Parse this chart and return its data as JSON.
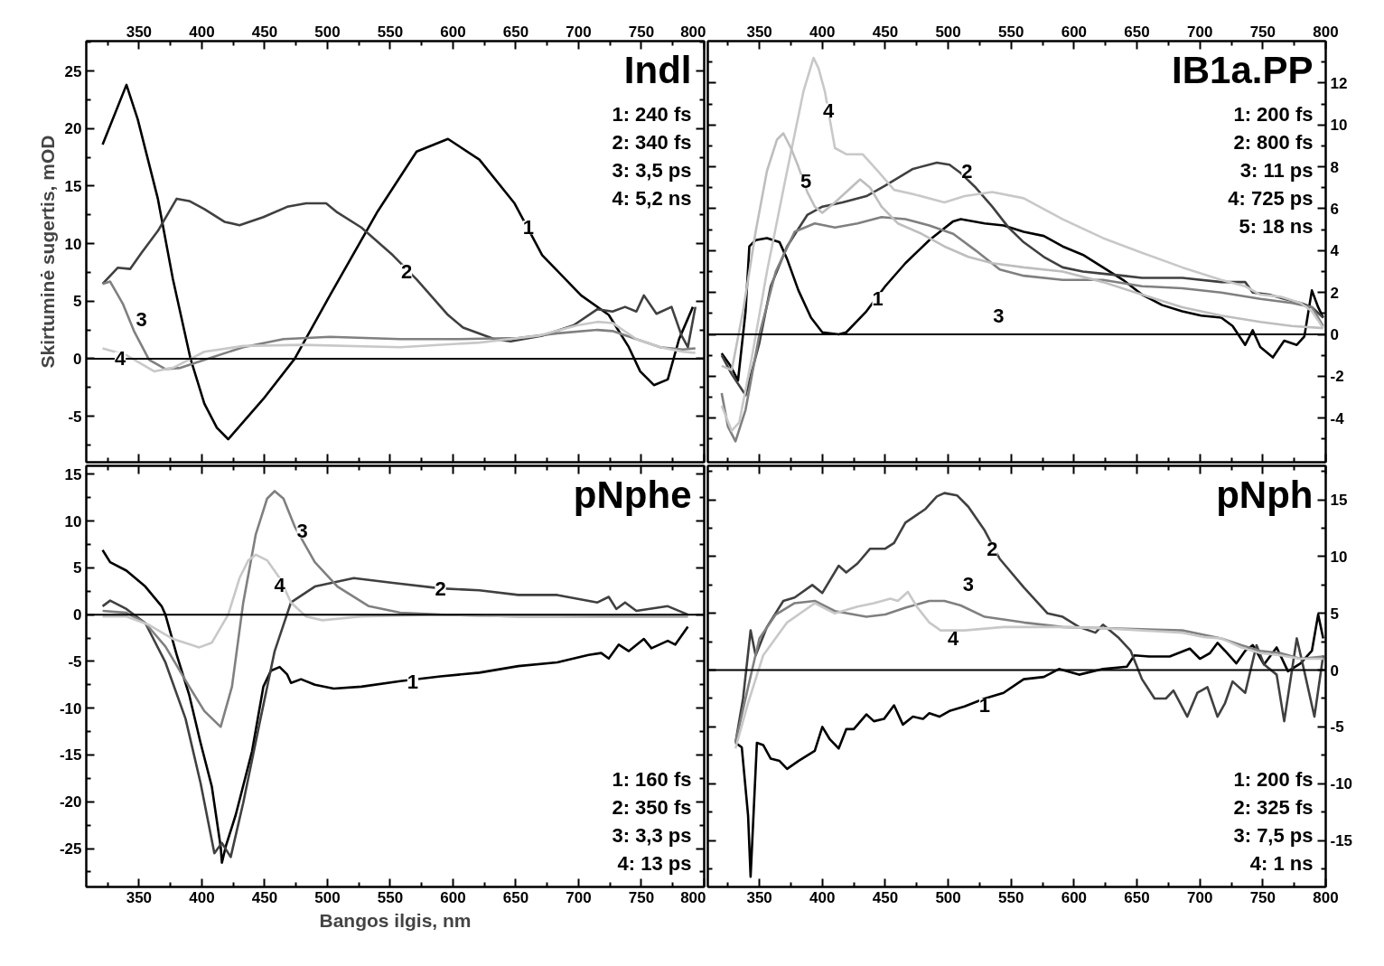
{
  "chart_data": [
    {
      "type": "line",
      "title": "Indl",
      "ylabel": "Skirtuminė sugertis, mOD",
      "xlim": [
        308,
        800
      ],
      "xticks": [
        350,
        400,
        450,
        500,
        550,
        600,
        650,
        700,
        750,
        800
      ],
      "ylim": [
        -9,
        27.6
      ],
      "yticks": [
        -5,
        0,
        5,
        10,
        15,
        20,
        25
      ],
      "grid": false,
      "annotations": [
        "1: 240 fs",
        "2: 340 fs",
        "3: 3,5 ps",
        "4: 5,2 ns",
        {
          "text": "1",
          "x": 660,
          "y": 11.4
        },
        {
          "text": "2",
          "x": 563,
          "y": 7.6
        },
        {
          "text": "3",
          "x": 352,
          "y": 3.4
        },
        {
          "text": "4",
          "x": 335,
          "y": 0
        }
      ],
      "ref_lines": [
        {
          "axis": "y",
          "value": 0,
          "color": "#000000"
        }
      ],
      "series": [
        {
          "color": "#000000",
          "x": [
            321,
            340,
            349,
            365,
            377,
            391,
            402,
            412,
            421,
            449,
            474,
            502,
            540,
            571,
            596,
            621,
            649,
            671,
            702,
            724,
            740,
            749,
            760,
            771,
            780,
            791
          ],
          "values": [
            18.6,
            23.8,
            20.8,
            13.9,
            6.9,
            0,
            -3.9,
            -6.0,
            -7.0,
            -3.5,
            0,
            5.5,
            12.8,
            18.0,
            19.1,
            17.3,
            13.5,
            9.0,
            5.5,
            3.8,
            1.0,
            -1.1,
            -2.3,
            -1.8,
            1.7,
            4.5
          ]
        },
        {
          "color": "#404040",
          "x": [
            321,
            333,
            343,
            352,
            365,
            380,
            390,
            402,
            418,
            430,
            449,
            468,
            483,
            499,
            508,
            527,
            552,
            571,
            596,
            608,
            633,
            646,
            671,
            696,
            715,
            727,
            737,
            746,
            752,
            762,
            774,
            782,
            787,
            793
          ],
          "values": [
            6.5,
            7.9,
            7.8,
            9.2,
            11.1,
            13.9,
            13.7,
            13.0,
            11.9,
            11.6,
            12.3,
            13.2,
            13.5,
            13.5,
            12.7,
            11.4,
            9.0,
            6.9,
            3.8,
            2.7,
            1.7,
            1.5,
            2.0,
            2.9,
            4.3,
            4.1,
            4.5,
            4.1,
            5.5,
            3.9,
            4.5,
            2.0,
            1.0,
            4.5
          ]
        },
        {
          "color": "#808080",
          "x": [
            321,
            327,
            337,
            346,
            358,
            371,
            383,
            402,
            433,
            465,
            502,
            558,
            605,
            652,
            683,
            715,
            727,
            746,
            765,
            783,
            793
          ],
          "values": [
            6.5,
            6.7,
            4.8,
            2.4,
            -0.1,
            -0.9,
            -0.8,
            -0.1,
            1.0,
            1.7,
            1.9,
            1.7,
            1.7,
            1.8,
            2.2,
            2.5,
            2.4,
            1.7,
            1.0,
            0.8,
            0.9
          ]
        },
        {
          "color": "#c8c8c8",
          "x": [
            321,
            340,
            362,
            377,
            402,
            433,
            480,
            558,
            621,
            668,
            699,
            715,
            727,
            746,
            765,
            783,
            793
          ],
          "values": [
            0.9,
            0.3,
            -1.1,
            -0.8,
            0.6,
            1.1,
            1.2,
            1.0,
            1.4,
            2.0,
            2.9,
            3.2,
            3.1,
            1.7,
            1.0,
            0.6,
            0.5
          ]
        }
      ]
    },
    {
      "type": "line",
      "title": "IB1a.PP",
      "xlim": [
        309,
        800
      ],
      "xticks": [
        350,
        400,
        450,
        500,
        550,
        600,
        650,
        700,
        750,
        800
      ],
      "ylim": [
        -6.1,
        14
      ],
      "yticks": [
        -4,
        -2,
        0,
        2,
        4,
        6,
        8,
        10,
        12
      ],
      "grid": false,
      "annotations": [
        "1: 200 fs",
        "2: 800 fs",
        "3: 11 ps",
        "4: 725 ps",
        "5: 18 ns",
        {
          "text": "4",
          "x": 405,
          "y": 10.7
        },
        {
          "text": "2",
          "x": 515,
          "y": 7.8
        },
        {
          "text": "5",
          "x": 387,
          "y": 7.3
        },
        {
          "text": "1",
          "x": 444,
          "y": 1.7
        },
        {
          "text": "3",
          "x": 540,
          "y": 0.9
        }
      ],
      "ref_lines": [
        {
          "axis": "y",
          "value": 0,
          "color": "#000000"
        }
      ],
      "series": [
        {
          "color": "#000000",
          "x": [
            320,
            327,
            333,
            339,
            342,
            347,
            356,
            366,
            372,
            381,
            391,
            400,
            413,
            419,
            435,
            450,
            466,
            485,
            504,
            510,
            529,
            544,
            560,
            576,
            591,
            607,
            623,
            639,
            654,
            670,
            686,
            701,
            717,
            726,
            736,
            742,
            748,
            758,
            767,
            777,
            783,
            789,
            794,
            798
          ],
          "values": [
            -0.9,
            -1.5,
            -2.2,
            1.1,
            4.2,
            4.5,
            4.6,
            4.4,
            3.6,
            2.1,
            0.8,
            0.1,
            0,
            0.1,
            1.1,
            2.3,
            3.4,
            4.5,
            5.4,
            5.5,
            5.3,
            5.2,
            4.9,
            4.7,
            4.2,
            3.8,
            3.2,
            2.6,
            1.9,
            1.4,
            1.1,
            0.9,
            0.8,
            0.4,
            -0.5,
            0.2,
            -0.6,
            -1.1,
            -0.3,
            -0.5,
            -0.1,
            2.1,
            1.3,
            0.8
          ]
        },
        {
          "color": "#404040",
          "x": [
            320,
            328,
            339,
            350,
            359,
            372,
            388,
            400,
            416,
            435,
            450,
            472,
            491,
            501,
            510,
            522,
            535,
            548,
            560,
            576,
            591,
            607,
            623,
            639,
            654,
            686,
            717,
            736,
            742,
            755,
            767,
            780,
            789,
            798
          ],
          "values": [
            -1.0,
            -1.9,
            -2.9,
            -0.4,
            2.3,
            4.2,
            5.7,
            6.1,
            6.3,
            6.6,
            7.1,
            7.9,
            8.2,
            8.1,
            7.7,
            7.0,
            6.1,
            5.1,
            4.4,
            3.7,
            3.2,
            3.0,
            2.9,
            2.8,
            2.7,
            2.7,
            2.5,
            2.5,
            2.0,
            1.9,
            1.7,
            1.5,
            1.3,
            0.8
          ]
        },
        {
          "color": "#808080",
          "x": [
            320,
            325,
            331,
            339,
            350,
            363,
            378,
            394,
            410,
            428,
            447,
            466,
            485,
            504,
            522,
            541,
            560,
            591,
            623,
            654,
            686,
            717,
            748,
            773,
            789,
            798
          ],
          "values": [
            -2.8,
            -4.4,
            -5.1,
            -3.6,
            0,
            3.0,
            4.9,
            5.3,
            5.1,
            5.3,
            5.6,
            5.5,
            5.2,
            4.8,
            4.0,
            3.1,
            2.8,
            2.6,
            2.6,
            2.3,
            2.2,
            2.0,
            1.7,
            1.5,
            1.3,
            0.4
          ]
        },
        {
          "color": "#c8c8c8",
          "x": [
            320,
            328,
            334,
            344,
            356,
            372,
            385,
            393,
            397,
            402,
            410,
            419,
            432,
            444,
            457,
            472,
            497,
            513,
            535,
            560,
            591,
            623,
            654,
            686,
            717,
            736,
            748,
            764,
            780,
            789,
            798
          ],
          "values": [
            -3.4,
            -4.6,
            -4.2,
            -1.1,
            3.0,
            7.8,
            11.6,
            13.2,
            12.7,
            11.6,
            8.9,
            8.6,
            8.6,
            7.8,
            6.9,
            6.7,
            6.3,
            6.6,
            6.8,
            6.5,
            5.5,
            4.6,
            3.9,
            3.2,
            2.6,
            2.3,
            1.9,
            1.8,
            1.5,
            1.1,
            0.3
          ]
        },
        {
          "color": "#bebebe",
          "x": [
            320,
            328,
            337,
            347,
            356,
            364,
            369,
            375,
            381,
            388,
            394,
            400,
            410,
            419,
            430,
            438,
            447,
            460,
            479,
            497,
            516,
            535,
            560,
            591,
            623,
            654,
            686,
            717,
            748,
            773,
            798
          ],
          "values": [
            -1.5,
            -1.7,
            1.1,
            4.9,
            7.8,
            9.3,
            9.6,
            8.9,
            8.0,
            6.8,
            6.1,
            5.8,
            6.3,
            6.8,
            7.4,
            7.0,
            6.1,
            5.3,
            4.8,
            4.2,
            3.7,
            3.4,
            3.2,
            3.0,
            2.5,
            1.9,
            1.3,
            0.9,
            0.6,
            0.4,
            0.3
          ]
        }
      ]
    },
    {
      "type": "line",
      "title": "pNphe",
      "xlabel": "Bangos ilgis, nm",
      "xlim": [
        308,
        800
      ],
      "xticks": [
        350,
        400,
        450,
        500,
        550,
        600,
        650,
        700,
        750,
        800
      ],
      "ylim": [
        -29.1,
        15.9
      ],
      "yticks": [
        -25,
        -20,
        -15,
        -10,
        -5,
        0,
        5,
        10,
        15
      ],
      "grid": false,
      "annotations": [
        "1: 160 fs",
        "2: 350 fs",
        "3: 3,3 ps",
        "4: 13 ps",
        {
          "text": "3",
          "x": 480,
          "y": 8.9
        },
        {
          "text": "4",
          "x": 462,
          "y": 3.2
        },
        {
          "text": "2",
          "x": 590,
          "y": 2.8
        },
        {
          "text": "1",
          "x": 568,
          "y": -7.2
        }
      ],
      "ref_lines": [
        {
          "axis": "y",
          "value": 0,
          "color": "#000000"
        }
      ],
      "series": [
        {
          "color": "#000000",
          "x": [
            321,
            327,
            340,
            355,
            368,
            371,
            380,
            390,
            399,
            408,
            415,
            416,
            419,
            427,
            440,
            449,
            455,
            462,
            468,
            471,
            479,
            490,
            505,
            527,
            558,
            590,
            621,
            652,
            683,
            708,
            718,
            724,
            732,
            740,
            752,
            758,
            771,
            777,
            787
          ],
          "values": [
            6.9,
            5.6,
            4.7,
            3.0,
            0.9,
            0,
            -4.3,
            -8.6,
            -13.7,
            -18.4,
            -24.8,
            -26.5,
            -24.8,
            -21.4,
            -14.6,
            -7.7,
            -6.0,
            -5.6,
            -6.4,
            -7.3,
            -6.9,
            -7.5,
            -7.9,
            -7.7,
            -7.1,
            -6.6,
            -6.2,
            -5.5,
            -5.1,
            -4.3,
            -4.1,
            -4.7,
            -3.2,
            -3.9,
            -2.6,
            -3.6,
            -2.8,
            -3.2,
            -1.3
          ]
        },
        {
          "color": "#404040",
          "x": [
            321,
            327,
            340,
            355,
            371,
            387,
            399,
            410,
            416,
            423,
            433,
            446,
            458,
            471,
            490,
            521,
            552,
            590,
            621,
            652,
            683,
            715,
            724,
            730,
            737,
            746,
            771,
            787
          ],
          "values": [
            0.9,
            1.5,
            0.6,
            -0.9,
            -5.1,
            -11.1,
            -18.0,
            -25.5,
            -24.4,
            -25.9,
            -20.1,
            -11.6,
            -3.9,
            1.3,
            3.0,
            3.9,
            3.4,
            2.8,
            2.6,
            2.1,
            2.1,
            1.3,
            1.9,
            0.6,
            1.3,
            0.4,
            0.9,
            0
          ]
        },
        {
          "color": "#808080",
          "x": [
            321,
            340,
            355,
            371,
            390,
            402,
            415,
            424,
            433,
            443,
            452,
            458,
            465,
            474,
            490,
            508,
            533,
            558,
            590,
            652,
            715,
            787
          ],
          "values": [
            0.4,
            0.2,
            -0.9,
            -3.4,
            -7.7,
            -10.3,
            -12.0,
            -7.7,
            1.3,
            8.6,
            12.4,
            13.2,
            12.4,
            9.4,
            5.6,
            3.0,
            0.9,
            0.2,
            0,
            -0.2,
            -0.2,
            -0.2
          ]
        },
        {
          "color": "#c8c8c8",
          "x": [
            321,
            340,
            358,
            377,
            398,
            408,
            421,
            430,
            437,
            443,
            452,
            462,
            471,
            483,
            496,
            527,
            590,
            652,
            715,
            787
          ],
          "values": [
            -0.2,
            -0.2,
            -1.1,
            -2.6,
            -3.5,
            -3.0,
            0,
            3.9,
            5.8,
            6.4,
            5.8,
            3.9,
            1.3,
            -0.2,
            -0.6,
            -0.2,
            0,
            -0.2,
            -0.1,
            -0.1
          ]
        }
      ]
    },
    {
      "type": "line",
      "title": "pNph",
      "xlim": [
        309,
        800
      ],
      "xticks": [
        350,
        400,
        450,
        500,
        550,
        600,
        650,
        700,
        750,
        800
      ],
      "ylim": [
        -19.1,
        18
      ],
      "yticks": [
        -15,
        -10,
        -5,
        0,
        5,
        10,
        15
      ],
      "grid": false,
      "annotations": [
        "1: 200 fs",
        "2: 325 fs",
        "3: 7,5 ps",
        "4: 1 ns",
        {
          "text": "2",
          "x": 535,
          "y": 10.7
        },
        {
          "text": "3",
          "x": 516,
          "y": 7.6
        },
        {
          "text": "4",
          "x": 504,
          "y": 2.8
        },
        {
          "text": "1",
          "x": 529,
          "y": -3.1
        }
      ],
      "ref_lines": [
        {
          "axis": "y",
          "value": 0,
          "color": "#000000"
        }
      ],
      "series": [
        {
          "color": "#000000",
          "x": [
            331,
            336,
            341,
            343,
            345,
            348,
            353,
            359,
            366,
            372,
            381,
            394,
            400,
            406,
            413,
            419,
            425,
            435,
            441,
            449,
            457,
            464,
            472,
            480,
            485,
            493,
            501,
            513,
            529,
            544,
            560,
            576,
            588,
            604,
            623,
            642,
            648,
            660,
            676,
            692,
            700,
            708,
            714,
            720,
            729,
            736,
            742,
            751,
            761,
            770,
            780,
            789,
            794,
            798
          ],
          "values": [
            -6.4,
            -6.8,
            -12.8,
            -18.2,
            -13.5,
            -6.4,
            -6.6,
            -7.8,
            -8.0,
            -8.7,
            -8.0,
            -7.1,
            -5.0,
            -6.1,
            -6.9,
            -5.2,
            -5.2,
            -3.9,
            -4.5,
            -4.3,
            -3.1,
            -4.8,
            -4.1,
            -4.3,
            -3.8,
            -4.1,
            -3.6,
            -3.2,
            -2.5,
            -2.0,
            -0.8,
            -0.6,
            0.1,
            -0.4,
            0.1,
            0.3,
            1.3,
            1.2,
            1.2,
            1.9,
            1.0,
            1.5,
            2.4,
            1.7,
            0.6,
            1.7,
            2.2,
            0.5,
            2.0,
            -0.1,
            0.6,
            1.7,
            4.9,
            2.8
          ]
        },
        {
          "color": "#404040",
          "x": [
            331,
            337,
            343,
            347,
            356,
            369,
            378,
            392,
            400,
            413,
            419,
            428,
            438,
            450,
            457,
            466,
            482,
            491,
            497,
            507,
            516,
            529,
            541,
            560,
            579,
            591,
            604,
            617,
            623,
            635,
            645,
            654,
            664,
            673,
            679,
            690,
            698,
            706,
            714,
            720,
            726,
            736,
            745,
            751,
            761,
            767,
            777,
            783,
            791,
            798
          ],
          "values": [
            -6.4,
            -2.5,
            3.5,
            1.3,
            3.8,
            6.1,
            6.4,
            7.5,
            6.8,
            9.2,
            8.6,
            9.4,
            10.7,
            10.7,
            11.2,
            13.0,
            14.2,
            15.3,
            15.6,
            15.4,
            14.4,
            12.3,
            9.8,
            7.3,
            5.0,
            4.7,
            3.8,
            3.3,
            4.0,
            2.9,
            1.7,
            -0.8,
            -2.5,
            -2.5,
            -1.8,
            -4.1,
            -2.0,
            -1.5,
            -4.1,
            -2.9,
            -1.0,
            -2.0,
            2.2,
            0.5,
            -0.4,
            -4.5,
            2.8,
            -0.1,
            -4.1,
            1.3
          ]
        },
        {
          "color": "#808080",
          "x": [
            331,
            341,
            350,
            363,
            378,
            394,
            410,
            435,
            450,
            466,
            485,
            497,
            510,
            529,
            560,
            591,
            623,
            654,
            686,
            704,
            717,
            733,
            748,
            764,
            780,
            798
          ],
          "values": [
            -6.4,
            -1.5,
            2.8,
            4.9,
            5.9,
            6.1,
            5.2,
            4.7,
            4.9,
            5.5,
            6.1,
            6.1,
            5.7,
            4.7,
            4.2,
            3.8,
            3.7,
            3.6,
            3.5,
            3.1,
            2.8,
            2.2,
            1.7,
            1.5,
            1.0,
            1.2
          ]
        },
        {
          "color": "#c8c8c8",
          "x": [
            331,
            341,
            353,
            372,
            394,
            410,
            428,
            441,
            454,
            460,
            468,
            475,
            485,
            494,
            513,
            544,
            591,
            623,
            654,
            686,
            704,
            717,
            733,
            748,
            764,
            780,
            798
          ],
          "values": [
            -6.9,
            -2.9,
            1.3,
            4.2,
            5.9,
            5.0,
            5.6,
            5.9,
            6.3,
            6.1,
            6.9,
            5.6,
            4.2,
            3.5,
            3.5,
            3.8,
            3.8,
            3.7,
            3.5,
            3.3,
            2.9,
            2.8,
            2.0,
            1.5,
            1.3,
            1.0,
            1.0
          ]
        }
      ]
    }
  ]
}
